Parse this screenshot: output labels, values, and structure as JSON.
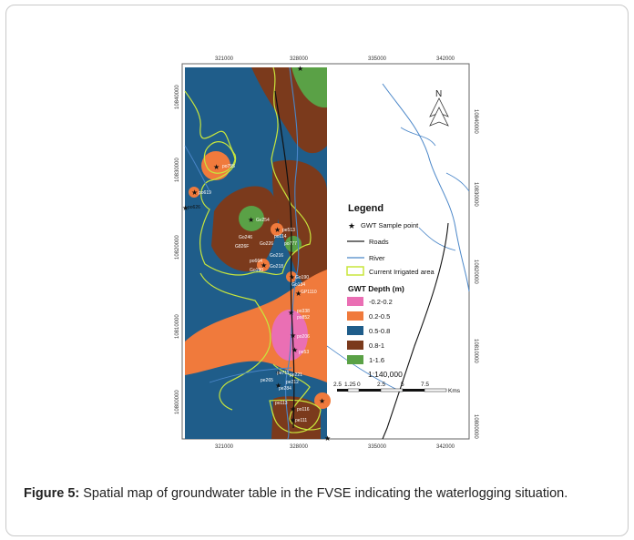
{
  "caption": {
    "label": "Figure 5:",
    "text": "Spatial map of groundwater table in the FVSE indicating the waterlogging situation."
  },
  "map": {
    "x_ticks": [
      "321000",
      "328000",
      "335000",
      "342000"
    ],
    "y_ticks": [
      "10800000",
      "10810000",
      "10820000",
      "10830000",
      "10840000"
    ],
    "north_label": "N",
    "legend": {
      "title": "Legend",
      "items": [
        {
          "label": "GWT Sample point",
          "symbol": "star"
        },
        {
          "label": "Roads",
          "symbol": "line",
          "color": "#222222"
        },
        {
          "label": "River",
          "symbol": "line",
          "color": "#4a86c8"
        },
        {
          "label": "Current Irrigated area",
          "symbol": "outline",
          "color": "#c8e63c"
        }
      ],
      "depth_title": "GWT Depth (m)",
      "depth_classes": [
        {
          "label": "-0.2-0.2",
          "color": "#ea6fb4"
        },
        {
          "label": "0.2-0.5",
          "color": "#f07a3c"
        },
        {
          "label": "0.5-0.8",
          "color": "#1f5d8a"
        },
        {
          "label": "0.8-1",
          "color": "#7b3a1c"
        },
        {
          "label": "1-1.6",
          "color": "#5aa146"
        }
      ],
      "scale_text": "1:140,000",
      "scale_ticks": [
        "2.5",
        "1.25",
        "0",
        "2.5",
        "5",
        "7.5"
      ],
      "scale_unit": "Kms"
    },
    "sample_points": [
      "po755",
      "po619",
      "po626",
      "Gv254",
      "pe513",
      "Go246",
      "po114",
      "Go226",
      "G826F",
      "po777",
      "Go216",
      "po664",
      "Go218",
      "Go190",
      "Go134",
      "GP1110",
      "po338",
      "po852",
      "po206",
      "pe53",
      "pe711",
      "pe221",
      "pe265",
      "pe212",
      "pe284",
      "po113",
      "po116",
      "pe111"
    ]
  }
}
